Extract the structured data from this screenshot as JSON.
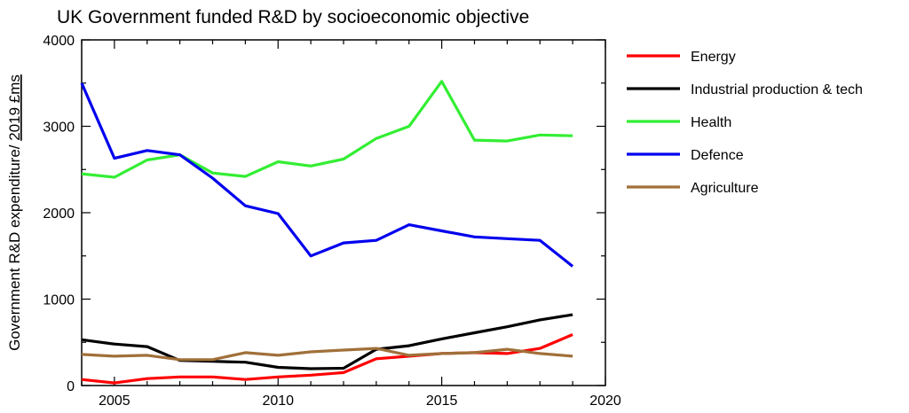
{
  "chart_data": {
    "type": "line",
    "title": "UK Government funded R&D by socioeconomic objective",
    "ylabel_prefix": "Government R&D expenditure/ ",
    "ylabel_unit": "2019 £ms",
    "xlabel": "",
    "xlim": [
      2004,
      2020
    ],
    "ylim": [
      0,
      4000
    ],
    "xticks": [
      2005,
      2010,
      2015,
      2020
    ],
    "yticks": [
      0,
      1000,
      2000,
      3000,
      4000
    ],
    "grid": false,
    "legend_position": "right",
    "x": [
      2004,
      2005,
      2006,
      2007,
      2008,
      2009,
      2010,
      2011,
      2012,
      2013,
      2014,
      2015,
      2016,
      2017,
      2018,
      2019
    ],
    "series": [
      {
        "name": "Energy",
        "color": "#ff0000",
        "values": [
          70,
          30,
          80,
          100,
          100,
          70,
          100,
          120,
          150,
          310,
          340,
          370,
          380,
          370,
          430,
          590
        ]
      },
      {
        "name": "Industrial production & tech",
        "color": "#000000",
        "values": [
          530,
          480,
          450,
          290,
          280,
          270,
          210,
          195,
          200,
          420,
          460,
          540,
          610,
          680,
          760,
          820
        ]
      },
      {
        "name": "Health",
        "color": "#33ee33",
        "values": [
          2450,
          2410,
          2610,
          2670,
          2460,
          2420,
          2590,
          2540,
          2620,
          2860,
          3000,
          3520,
          2840,
          2830,
          2900,
          2890
        ]
      },
      {
        "name": "Defence",
        "color": "#0000ee",
        "values": [
          3500,
          2630,
          2720,
          2670,
          2400,
          2080,
          1990,
          1500,
          1650,
          1680,
          1860,
          1790,
          1720,
          1700,
          1680,
          1380
        ]
      },
      {
        "name": "Agriculture",
        "color": "#a0703a",
        "values": [
          360,
          340,
          350,
          300,
          300,
          380,
          350,
          390,
          410,
          430,
          350,
          370,
          380,
          420,
          370,
          340
        ]
      }
    ]
  }
}
